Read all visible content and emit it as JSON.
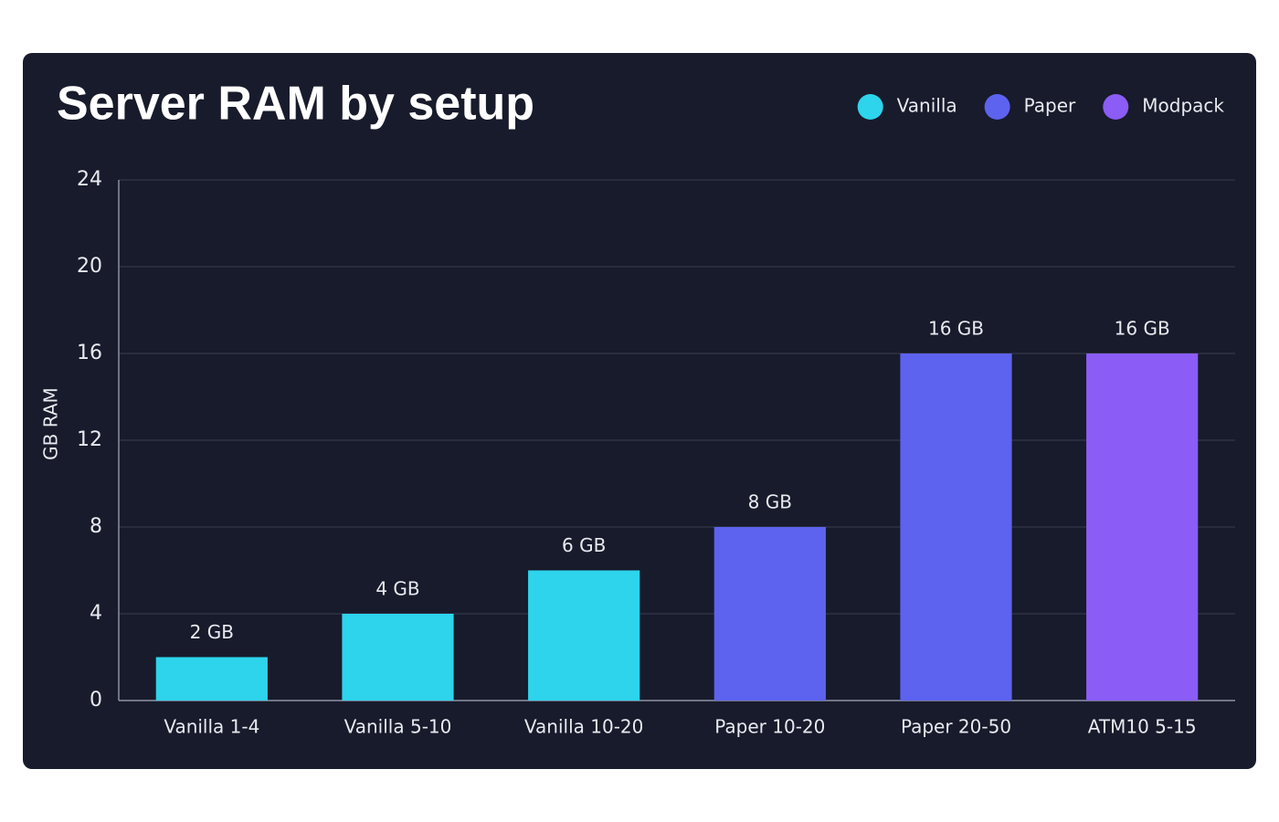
{
  "chart_data": {
    "type": "bar",
    "title": "Server RAM by setup",
    "y_label": "GB RAM",
    "categories": [
      "Vanilla 1-4",
      "Vanilla 5-10",
      "Vanilla 10-20",
      "Paper 10-20",
      "Paper 20-50",
      "ATM10 5-15"
    ],
    "series": [
      {
        "name": "Vanilla",
        "color": "#2dd4ec",
        "values": [
          2,
          4,
          6,
          null,
          null,
          null
        ],
        "value_labels": [
          "2 GB",
          "4 GB",
          "6 GB",
          null,
          null,
          null
        ]
      },
      {
        "name": "Paper",
        "color": "#5d63ee",
        "values": [
          null,
          null,
          null,
          8,
          16,
          null
        ],
        "value_labels": [
          null,
          null,
          null,
          "8 GB",
          "16 GB",
          null
        ]
      },
      {
        "name": "Modpack",
        "color": "#8b5cf6",
        "values": [
          null,
          null,
          null,
          null,
          null,
          16
        ],
        "value_labels": [
          null,
          null,
          null,
          null,
          null,
          "16 GB"
        ]
      }
    ],
    "ylim": [
      0,
      24
    ],
    "yticks": [
      0,
      4,
      8,
      12,
      16,
      20,
      24
    ],
    "grid": true,
    "legend": "top-right"
  }
}
